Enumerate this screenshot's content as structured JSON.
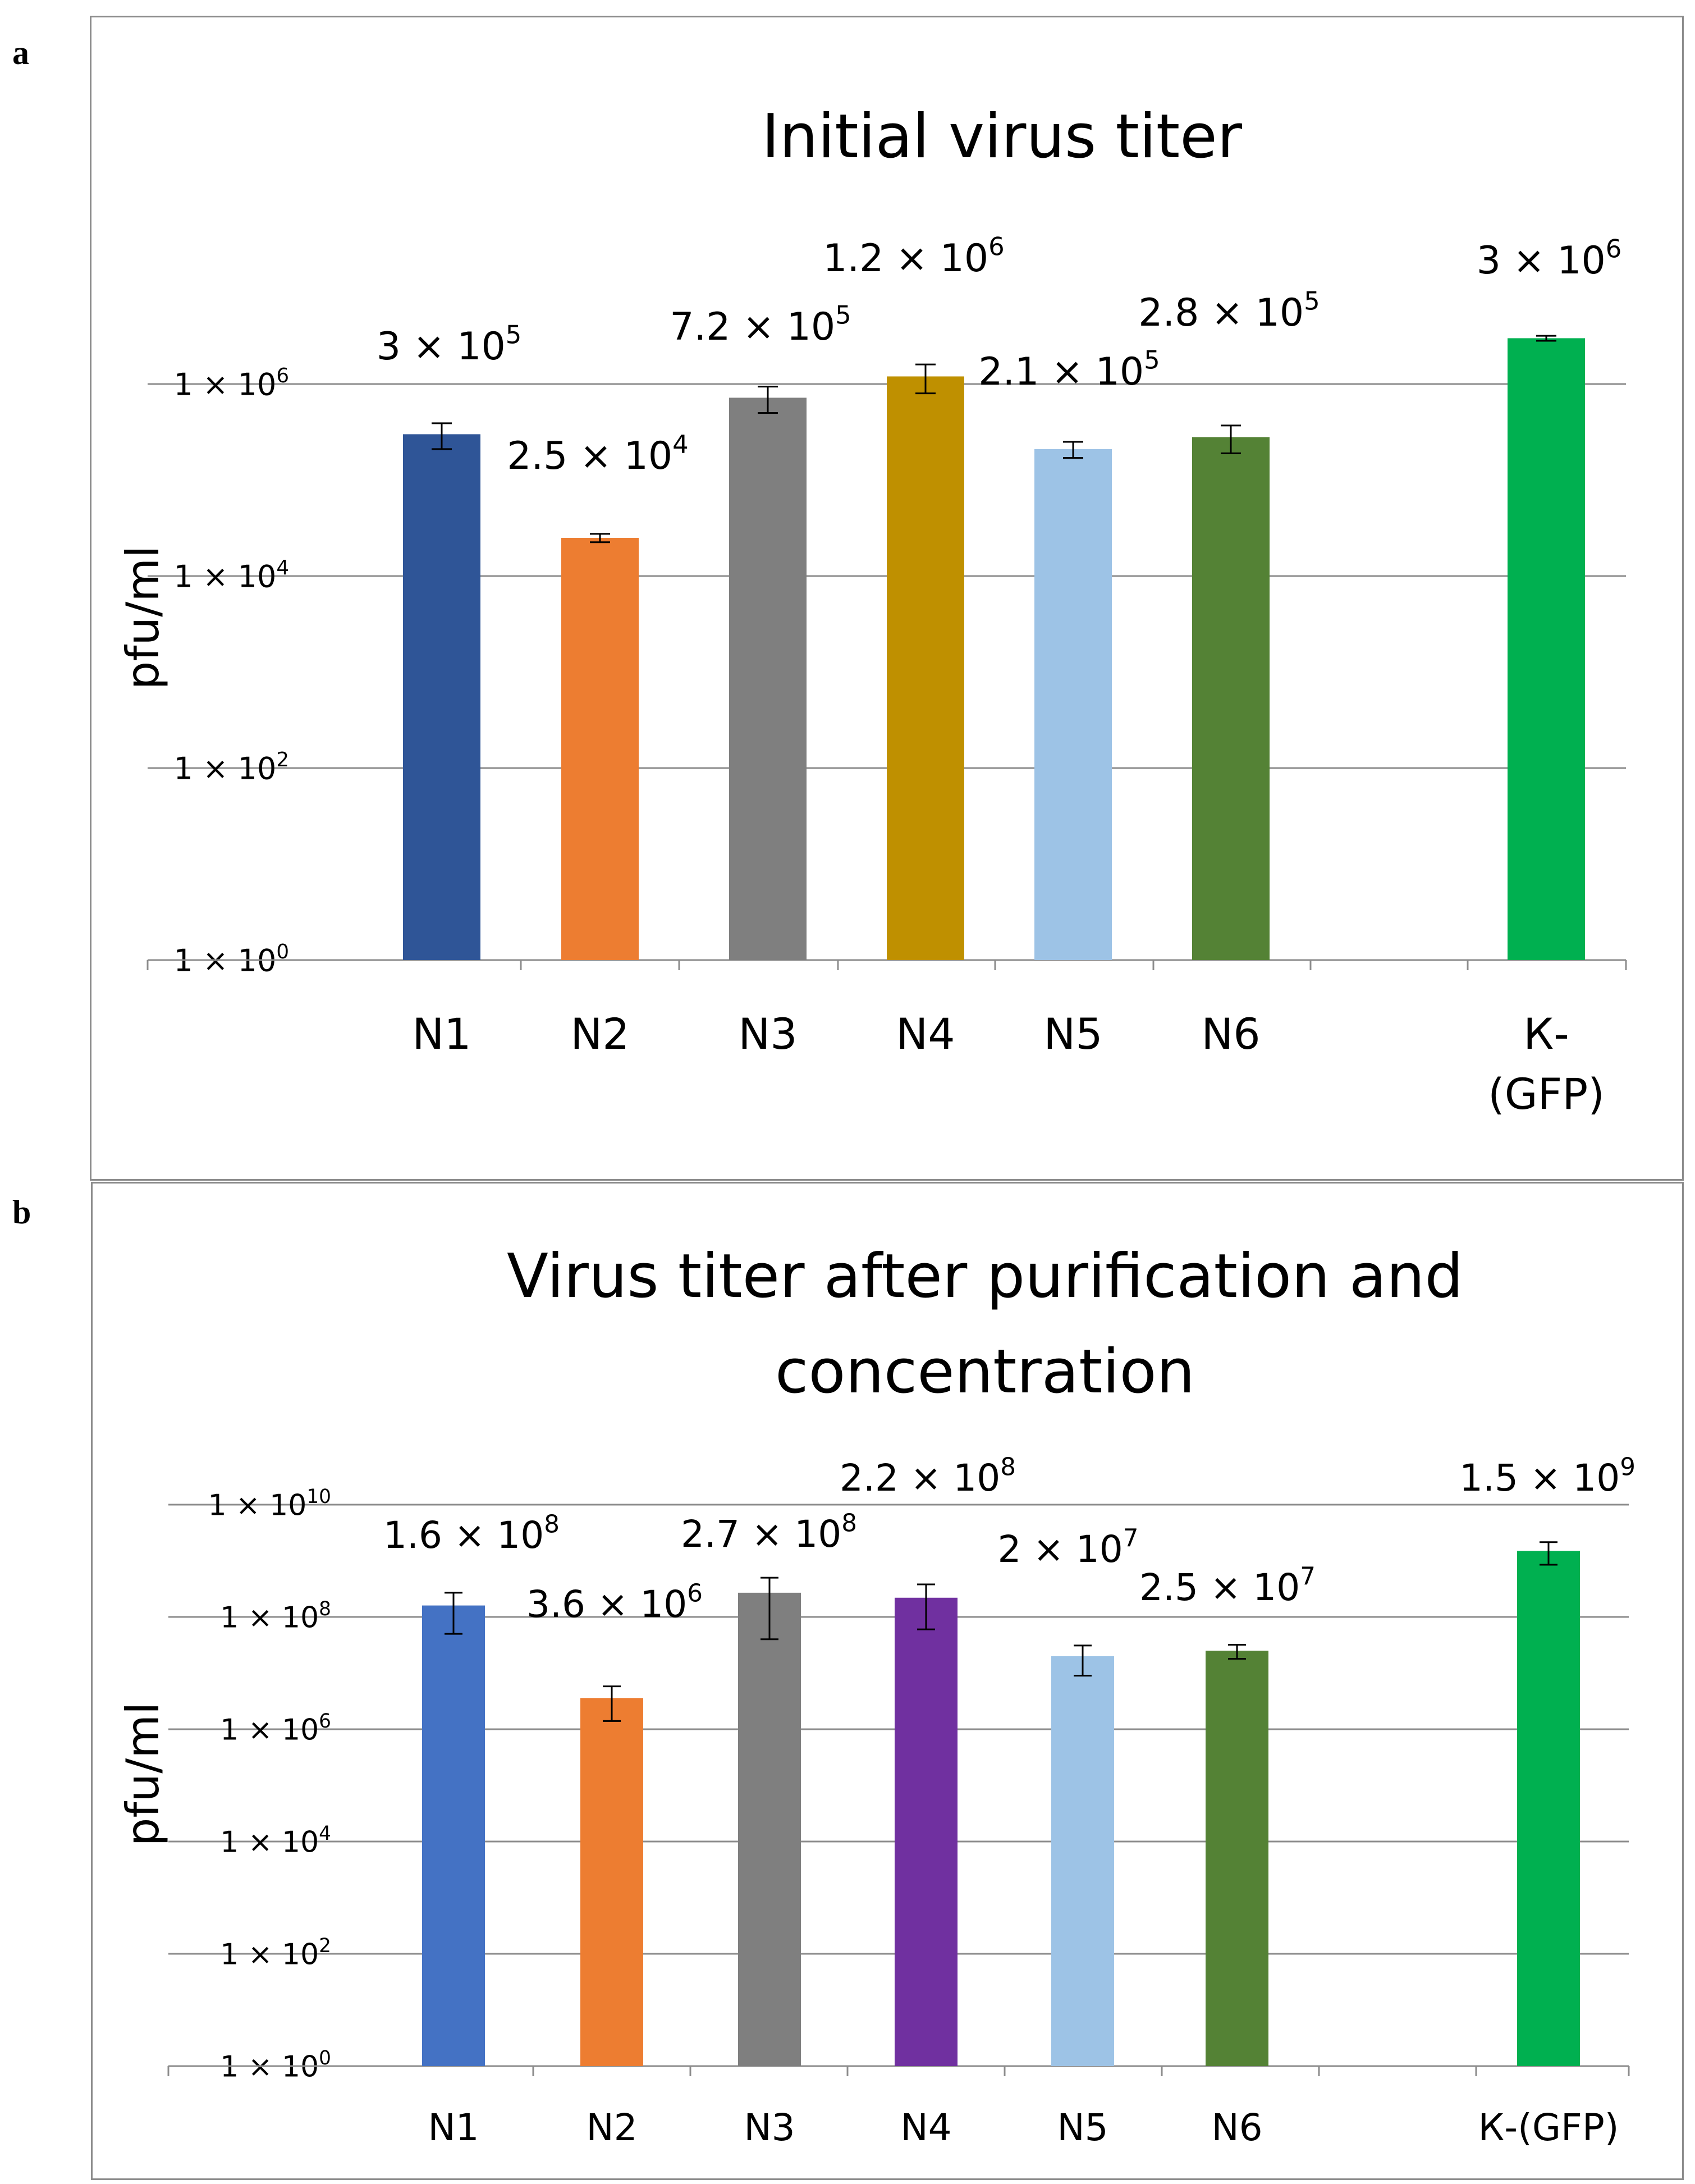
{
  "panels": [
    {
      "letter": "a",
      "chart_data": {
        "type": "bar",
        "scale": "log10",
        "title": "Initial virus titer",
        "title_lines": [
          "Initial virus titer"
        ],
        "ylabel": "pfu/ml",
        "xlabel": "",
        "ylim": [
          1,
          10000000
        ],
        "yticks": [
          {
            "value": 1,
            "mantissa": "1 × 10",
            "exp": "0"
          },
          {
            "value": 100,
            "mantissa": "1 × 10",
            "exp": "2"
          },
          {
            "value": 10000,
            "mantissa": "1 × 10",
            "exp": "4"
          },
          {
            "value": 1000000,
            "mantissa": "1 × 10",
            "exp": "6"
          }
        ],
        "grid": true,
        "categories": [
          {
            "label_lines": [
              "N1"
            ],
            "value": 300000,
            "err": 90000,
            "color": "#2f5597",
            "label_mantissa": "3 × 10",
            "label_exp": "5"
          },
          {
            "label_lines": [
              "N2"
            ],
            "value": 25000,
            "err": 2500,
            "color": "#ed7d31",
            "label_mantissa": "2.5 × 10",
            "label_exp": "4"
          },
          {
            "label_lines": [
              "N3"
            ],
            "value": 720000,
            "err": 220000,
            "color": "#7f7f7f",
            "label_mantissa": "7.2 × 10",
            "label_exp": "5"
          },
          {
            "label_lines": [
              "N4"
            ],
            "value": 1200000,
            "err": 400000,
            "color": "#bf9000",
            "label_mantissa": "1.2 × 10",
            "label_exp": "6"
          },
          {
            "label_lines": [
              "N5"
            ],
            "value": 210000,
            "err": 40000,
            "color": "#9dc3e6",
            "label_mantissa": "2.1 × 10",
            "label_exp": "5"
          },
          {
            "label_lines": [
              "N6"
            ],
            "value": 280000,
            "err": 90000,
            "color": "#548235",
            "label_mantissa": "2.8 × 10",
            "label_exp": "5"
          },
          {
            "label_lines": [],
            "value": null,
            "err": null,
            "color": "",
            "label_mantissa": "",
            "label_exp": ""
          },
          {
            "label_lines": [
              "К-",
              "(GFP)"
            ],
            "value": 3000000,
            "err": 180000,
            "color": "#00b050",
            "label_mantissa": "3 × 10",
            "label_exp": "6"
          }
        ]
      }
    },
    {
      "letter": "b",
      "chart_data": {
        "type": "bar",
        "scale": "log10",
        "title": "Virus titer after purification and concentration",
        "title_lines": [
          "Virus titer after purification and",
          "concentration"
        ],
        "ylabel": "pfu/ml",
        "xlabel": "",
        "ylim": [
          1,
          10000000000
        ],
        "yticks": [
          {
            "value": 1,
            "mantissa": "1 × 10",
            "exp": "0"
          },
          {
            "value": 100,
            "mantissa": "1 × 10",
            "exp": "2"
          },
          {
            "value": 10000,
            "mantissa": "1 × 10",
            "exp": "4"
          },
          {
            "value": 1000000,
            "mantissa": "1 × 10",
            "exp": "6"
          },
          {
            "value": 100000000,
            "mantissa": "1 × 10",
            "exp": "8"
          },
          {
            "value": 10000000000,
            "mantissa": "1 × 10",
            "exp": "10"
          }
        ],
        "grid": true,
        "categories": [
          {
            "label_lines": [
              "N1"
            ],
            "value": 160000000,
            "err": 110000000,
            "color": "#4472c4",
            "label_mantissa": "1.6 × 10",
            "label_exp": "8"
          },
          {
            "label_lines": [
              "N2"
            ],
            "value": 3600000,
            "err": 2200000,
            "color": "#ed7d31",
            "label_mantissa": "3.6 × 10",
            "label_exp": "6"
          },
          {
            "label_lines": [
              "N3"
            ],
            "value": 270000000,
            "err": 230000000,
            "color": "#7f7f7f",
            "label_mantissa": "2.7 × 10",
            "label_exp": "8"
          },
          {
            "label_lines": [
              "N4"
            ],
            "value": 220000000,
            "err": 160000000,
            "color": "#7030a0",
            "label_mantissa": "2.2 × 10",
            "label_exp": "8"
          },
          {
            "label_lines": [
              "N5"
            ],
            "value": 20000000,
            "err": 11000000,
            "color": "#9dc3e6",
            "label_mantissa": "2 × 10",
            "label_exp": "7"
          },
          {
            "label_lines": [
              "N6"
            ],
            "value": 25000000,
            "err": 7000000,
            "color": "#548235",
            "label_mantissa": "2.5 × 10",
            "label_exp": "7"
          },
          {
            "label_lines": [],
            "value": null,
            "err": null,
            "color": "",
            "label_mantissa": "",
            "label_exp": ""
          },
          {
            "label_lines": [
              "К-(GFP)"
            ],
            "value": 1500000000,
            "err": 650000000,
            "color": "#00b050",
            "label_mantissa": "1.5 × 10",
            "label_exp": "9"
          }
        ]
      }
    }
  ]
}
